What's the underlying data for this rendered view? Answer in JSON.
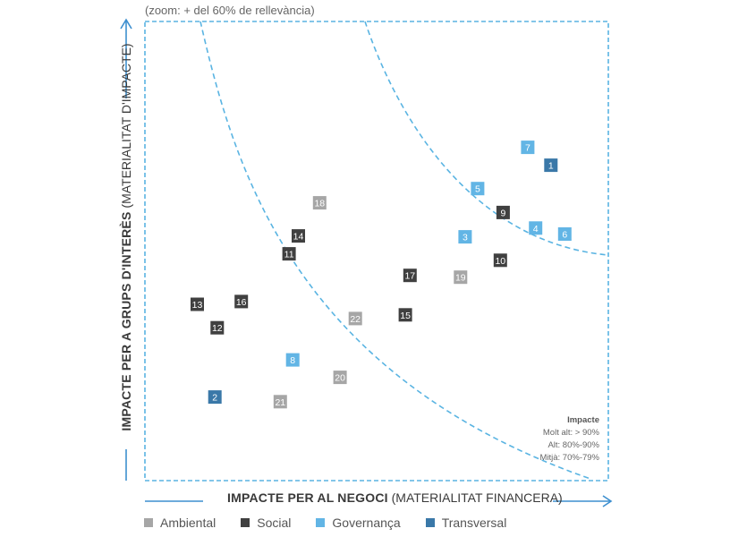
{
  "note": "(zoom: + del 60% de rellevància)",
  "chart_data": {
    "type": "scatter",
    "xlabel_bold": "IMPACTE PER AL NEGOCI",
    "xlabel_rest": "(MATERIALITAT FINANCERA)",
    "ylabel_bold": "IMPACTE PER A GRUPS D'INTERÈS",
    "ylabel_rest": "(MATERIALITAT D'IMPACTE)",
    "xlim": [
      0,
      100
    ],
    "ylim": [
      0,
      100
    ],
    "grid": false,
    "axis_ticks": false,
    "colors": {
      "Ambiental": "#a6a6a6",
      "Social": "#404040",
      "Governança": "#62b5e5",
      "Transversal": "#3a78a8"
    },
    "legend": [
      "Ambiental",
      "Social",
      "Governança",
      "Transversal"
    ],
    "legend_position": "bottom",
    "impact_box": {
      "title": "Impacte",
      "items": [
        "Molt alt: > 90%",
        "Alt: 80%-90%",
        "Mitjà: 70%-79%"
      ]
    },
    "points": [
      {
        "id": "1",
        "category": "Transversal",
        "x": 87.6,
        "y": 68.7
      },
      {
        "id": "2",
        "category": "Transversal",
        "x": 15.1,
        "y": 18.2
      },
      {
        "id": "3",
        "category": "Governança",
        "x": 69.1,
        "y": 53.1
      },
      {
        "id": "4",
        "category": "Governança",
        "x": 84.3,
        "y": 55.0
      },
      {
        "id": "5",
        "category": "Governança",
        "x": 71.8,
        "y": 63.6
      },
      {
        "id": "6",
        "category": "Governança",
        "x": 90.6,
        "y": 53.7
      },
      {
        "id": "7",
        "category": "Governança",
        "x": 82.6,
        "y": 72.6
      },
      {
        "id": "8",
        "category": "Governança",
        "x": 31.9,
        "y": 26.3
      },
      {
        "id": "9",
        "category": "Social",
        "x": 77.3,
        "y": 58.4
      },
      {
        "id": "10",
        "category": "Social",
        "x": 76.7,
        "y": 48.0
      },
      {
        "id": "11",
        "category": "Social",
        "x": 31.1,
        "y": 49.4
      },
      {
        "id": "12",
        "category": "Social",
        "x": 15.6,
        "y": 33.3
      },
      {
        "id": "13",
        "category": "Social",
        "x": 11.3,
        "y": 38.4
      },
      {
        "id": "14",
        "category": "Social",
        "x": 33.1,
        "y": 53.3
      },
      {
        "id": "15",
        "category": "Social",
        "x": 56.2,
        "y": 36.1
      },
      {
        "id": "16",
        "category": "Social",
        "x": 20.8,
        "y": 39.0
      },
      {
        "id": "17",
        "category": "Social",
        "x": 57.2,
        "y": 44.7
      },
      {
        "id": "18",
        "category": "Ambiental",
        "x": 37.7,
        "y": 60.5
      },
      {
        "id": "19",
        "category": "Ambiental",
        "x": 68.1,
        "y": 44.3
      },
      {
        "id": "20",
        "category": "Ambiental",
        "x": 42.1,
        "y": 22.5
      },
      {
        "id": "21",
        "category": "Ambiental",
        "x": 29.2,
        "y": 17.2
      },
      {
        "id": "22",
        "category": "Ambiental",
        "x": 45.4,
        "y": 35.3
      }
    ]
  }
}
